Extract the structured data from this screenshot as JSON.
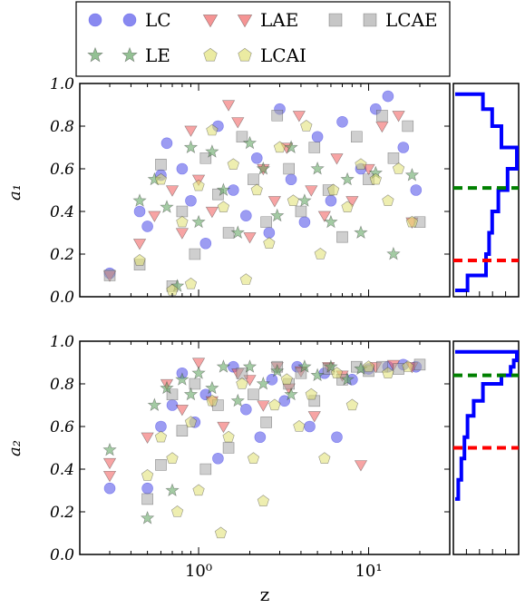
{
  "legend": {
    "entries": [
      {
        "label": "LC",
        "marker": "circle",
        "color": "#4a4ae8"
      },
      {
        "label": "LAE",
        "marker": "triangle-down",
        "color": "#f05a5a"
      },
      {
        "label": "LCAE",
        "marker": "square",
        "color": "#a8a8a8"
      },
      {
        "label": "LE",
        "marker": "star",
        "color": "#5aa05a"
      },
      {
        "label": "LCAI",
        "marker": "pentagon",
        "color": "#e0e070"
      }
    ]
  },
  "chart_data": [
    {
      "type": "scatter",
      "ylabel": "a₁",
      "xscale": "log",
      "xlim": [
        0.2,
        30
      ],
      "ylim": [
        0.0,
        1.0
      ],
      "yticks": [
        "0.0",
        "0.2",
        "0.4",
        "0.6",
        "0.8",
        "1.0"
      ],
      "series": [
        {
          "name": "LC",
          "color": "#4a4ae8",
          "points": [
            [
              0.3,
              0.11
            ],
            [
              0.45,
              0.4
            ],
            [
              0.5,
              0.33
            ],
            [
              0.6,
              0.57
            ],
            [
              0.65,
              0.72
            ],
            [
              0.8,
              0.6
            ],
            [
              0.9,
              0.45
            ],
            [
              1.1,
              0.25
            ],
            [
              1.3,
              0.8
            ],
            [
              1.6,
              0.5
            ],
            [
              1.9,
              0.38
            ],
            [
              2.2,
              0.65
            ],
            [
              2.6,
              0.3
            ],
            [
              3.0,
              0.88
            ],
            [
              3.5,
              0.55
            ],
            [
              4.2,
              0.35
            ],
            [
              5.0,
              0.75
            ],
            [
              6.0,
              0.45
            ],
            [
              7.0,
              0.82
            ],
            [
              9.0,
              0.6
            ],
            [
              11,
              0.88
            ],
            [
              13,
              0.94
            ],
            [
              16,
              0.7
            ],
            [
              19,
              0.5
            ]
          ]
        },
        {
          "name": "LAE",
          "color": "#f05a5a",
          "points": [
            [
              0.3,
              0.1
            ],
            [
              0.45,
              0.25
            ],
            [
              0.55,
              0.38
            ],
            [
              0.7,
              0.5
            ],
            [
              0.8,
              0.3
            ],
            [
              0.9,
              0.78
            ],
            [
              1.0,
              0.55
            ],
            [
              1.2,
              0.4
            ],
            [
              1.5,
              0.9
            ],
            [
              1.7,
              0.82
            ],
            [
              2.0,
              0.28
            ],
            [
              2.4,
              0.6
            ],
            [
              2.8,
              0.45
            ],
            [
              3.3,
              0.7
            ],
            [
              3.9,
              0.85
            ],
            [
              4.6,
              0.5
            ],
            [
              5.5,
              0.38
            ],
            [
              6.5,
              0.65
            ],
            [
              8.0,
              0.45
            ],
            [
              10,
              0.6
            ],
            [
              12,
              0.8
            ],
            [
              15,
              0.85
            ],
            [
              18,
              0.35
            ]
          ]
        },
        {
          "name": "LCAE",
          "color": "#a8a8a8",
          "points": [
            [
              0.3,
              0.1
            ],
            [
              0.45,
              0.15
            ],
            [
              0.6,
              0.62
            ],
            [
              0.7,
              0.05
            ],
            [
              0.8,
              0.4
            ],
            [
              0.95,
              0.2
            ],
            [
              1.1,
              0.65
            ],
            [
              1.3,
              0.48
            ],
            [
              1.5,
              0.3
            ],
            [
              1.8,
              0.75
            ],
            [
              2.1,
              0.55
            ],
            [
              2.5,
              0.35
            ],
            [
              2.9,
              0.85
            ],
            [
              3.4,
              0.6
            ],
            [
              4.0,
              0.4
            ],
            [
              4.8,
              0.7
            ],
            [
              5.8,
              0.5
            ],
            [
              7.0,
              0.28
            ],
            [
              8.5,
              0.75
            ],
            [
              10,
              0.55
            ],
            [
              12,
              0.85
            ],
            [
              14,
              0.65
            ],
            [
              17,
              0.8
            ],
            [
              20,
              0.35
            ]
          ]
        },
        {
          "name": "LE",
          "color": "#5aa05a",
          "points": [
            [
              0.45,
              0.45
            ],
            [
              0.55,
              0.55
            ],
            [
              0.65,
              0.42
            ],
            [
              0.75,
              0.05
            ],
            [
              0.9,
              0.7
            ],
            [
              1.0,
              0.35
            ],
            [
              1.2,
              0.68
            ],
            [
              1.4,
              0.5
            ],
            [
              1.7,
              0.3
            ],
            [
              2.0,
              0.72
            ],
            [
              2.4,
              0.6
            ],
            [
              2.9,
              0.38
            ],
            [
              3.5,
              0.7
            ],
            [
              4.2,
              0.45
            ],
            [
              5.0,
              0.6
            ],
            [
              6.0,
              0.35
            ],
            [
              7.5,
              0.55
            ],
            [
              9.0,
              0.3
            ],
            [
              11,
              0.58
            ],
            [
              14,
              0.2
            ],
            [
              18,
              0.57
            ]
          ]
        },
        {
          "name": "LCAI",
          "color": "#e0e070",
          "points": [
            [
              0.45,
              0.17
            ],
            [
              0.6,
              0.55
            ],
            [
              0.7,
              0.03
            ],
            [
              0.8,
              0.35
            ],
            [
              0.9,
              0.06
            ],
            [
              1.0,
              0.52
            ],
            [
              1.2,
              0.78
            ],
            [
              1.4,
              0.42
            ],
            [
              1.6,
              0.62
            ],
            [
              1.9,
              0.08
            ],
            [
              2.2,
              0.5
            ],
            [
              2.6,
              0.25
            ],
            [
              3.0,
              0.7
            ],
            [
              3.6,
              0.45
            ],
            [
              4.3,
              0.8
            ],
            [
              5.2,
              0.2
            ],
            [
              6.2,
              0.5
            ],
            [
              7.5,
              0.42
            ],
            [
              9.0,
              0.62
            ],
            [
              11,
              0.55
            ],
            [
              13,
              0.45
            ],
            [
              15,
              0.6
            ],
            [
              18,
              0.35
            ]
          ]
        }
      ]
    },
    {
      "type": "scatter",
      "ylabel": "a₂",
      "xlabel": "z",
      "xscale": "log",
      "xlim": [
        0.2,
        30
      ],
      "ylim": [
        0.0,
        1.0
      ],
      "xticks": [
        "10⁰",
        "10¹"
      ],
      "yticks": [
        "0.0",
        "0.2",
        "0.4",
        "0.6",
        "0.8",
        "1.0"
      ],
      "series": [
        {
          "name": "LC",
          "color": "#4a4ae8",
          "points": [
            [
              0.3,
              0.31
            ],
            [
              0.5,
              0.31
            ],
            [
              0.6,
              0.6
            ],
            [
              0.7,
              0.7
            ],
            [
              0.8,
              0.85
            ],
            [
              0.95,
              0.62
            ],
            [
              1.1,
              0.75
            ],
            [
              1.3,
              0.45
            ],
            [
              1.6,
              0.88
            ],
            [
              1.9,
              0.68
            ],
            [
              2.3,
              0.55
            ],
            [
              2.7,
              0.82
            ],
            [
              3.2,
              0.72
            ],
            [
              3.8,
              0.88
            ],
            [
              4.5,
              0.6
            ],
            [
              5.5,
              0.85
            ],
            [
              6.5,
              0.55
            ],
            [
              8.0,
              0.82
            ],
            [
              10,
              0.87
            ],
            [
              13,
              0.88
            ],
            [
              16,
              0.89
            ],
            [
              19,
              0.88
            ]
          ]
        },
        {
          "name": "LAE",
          "color": "#f05a5a",
          "points": [
            [
              0.3,
              0.43
            ],
            [
              0.3,
              0.37
            ],
            [
              0.5,
              0.55
            ],
            [
              0.65,
              0.8
            ],
            [
              0.8,
              0.68
            ],
            [
              1.0,
              0.9
            ],
            [
              1.2,
              0.72
            ],
            [
              1.4,
              0.6
            ],
            [
              1.7,
              0.85
            ],
            [
              2.0,
              0.82
            ],
            [
              2.4,
              0.7
            ],
            [
              2.9,
              0.88
            ],
            [
              3.4,
              0.78
            ],
            [
              4.0,
              0.86
            ],
            [
              4.8,
              0.65
            ],
            [
              5.8,
              0.88
            ],
            [
              7.0,
              0.84
            ],
            [
              9.0,
              0.42
            ],
            [
              11,
              0.88
            ],
            [
              14,
              0.89
            ],
            [
              18,
              0.88
            ]
          ]
        },
        {
          "name": "LCAE",
          "color": "#a8a8a8",
          "points": [
            [
              0.5,
              0.26
            ],
            [
              0.6,
              0.42
            ],
            [
              0.7,
              0.75
            ],
            [
              0.8,
              0.58
            ],
            [
              0.95,
              0.8
            ],
            [
              1.1,
              0.4
            ],
            [
              1.3,
              0.7
            ],
            [
              1.5,
              0.5
            ],
            [
              1.8,
              0.85
            ],
            [
              2.1,
              0.75
            ],
            [
              2.5,
              0.62
            ],
            [
              2.9,
              0.88
            ],
            [
              3.4,
              0.8
            ],
            [
              4.0,
              0.85
            ],
            [
              4.8,
              0.72
            ],
            [
              5.8,
              0.87
            ],
            [
              7.0,
              0.82
            ],
            [
              8.5,
              0.88
            ],
            [
              10,
              0.86
            ],
            [
              12,
              0.88
            ],
            [
              15,
              0.87
            ],
            [
              20,
              0.89
            ]
          ]
        },
        {
          "name": "LE",
          "color": "#5aa05a",
          "points": [
            [
              0.3,
              0.49
            ],
            [
              0.5,
              0.17
            ],
            [
              0.55,
              0.7
            ],
            [
              0.65,
              0.78
            ],
            [
              0.7,
              0.3
            ],
            [
              0.8,
              0.82
            ],
            [
              0.9,
              0.75
            ],
            [
              1.0,
              0.85
            ],
            [
              1.2,
              0.78
            ],
            [
              1.4,
              0.88
            ],
            [
              1.7,
              0.72
            ],
            [
              2.0,
              0.88
            ],
            [
              2.4,
              0.8
            ],
            [
              2.9,
              0.86
            ],
            [
              3.5,
              0.75
            ],
            [
              4.2,
              0.88
            ],
            [
              5.0,
              0.84
            ],
            [
              6.0,
              0.88
            ],
            [
              7.5,
              0.82
            ],
            [
              9.0,
              0.87
            ]
          ]
        },
        {
          "name": "LCAI",
          "color": "#e0e070",
          "points": [
            [
              0.5,
              0.37
            ],
            [
              0.6,
              0.55
            ],
            [
              0.7,
              0.45
            ],
            [
              0.75,
              0.2
            ],
            [
              0.9,
              0.62
            ],
            [
              1.0,
              0.3
            ],
            [
              1.2,
              0.72
            ],
            [
              1.35,
              0.1
            ],
            [
              1.5,
              0.55
            ],
            [
              1.8,
              0.8
            ],
            [
              2.1,
              0.45
            ],
            [
              2.4,
              0.25
            ],
            [
              2.8,
              0.7
            ],
            [
              3.3,
              0.82
            ],
            [
              3.9,
              0.6
            ],
            [
              4.6,
              0.75
            ],
            [
              5.5,
              0.45
            ],
            [
              6.5,
              0.85
            ],
            [
              8.0,
              0.7
            ],
            [
              10,
              0.88
            ],
            [
              13,
              0.85
            ],
            [
              17,
              0.88
            ]
          ]
        }
      ]
    },
    {
      "type": "line",
      "orientation": "horizontal-histogram",
      "ylim": [
        0.0,
        1.0
      ],
      "series": [
        {
          "name": "",
          "color": "#0000ff",
          "steps": [
            [
              0.03,
              0.2
            ],
            [
              0.1,
              0.5
            ],
            [
              0.2,
              0.55
            ],
            [
              0.3,
              0.6
            ],
            [
              0.4,
              0.7
            ],
            [
              0.5,
              0.85
            ],
            [
              0.6,
              1.0
            ],
            [
              0.7,
              0.75
            ],
            [
              0.8,
              0.6
            ],
            [
              0.88,
              0.45
            ],
            [
              0.95,
              0.0
            ]
          ]
        }
      ],
      "reference_lines": [
        {
          "value": 0.51,
          "color": "#008000"
        },
        {
          "value": 0.17,
          "color": "#ff0000"
        }
      ]
    },
    {
      "type": "line",
      "orientation": "horizontal-histogram",
      "ylim": [
        0.0,
        1.0
      ],
      "series": [
        {
          "name": "",
          "color": "#0000ff",
          "steps": [
            [
              0.26,
              0.05
            ],
            [
              0.35,
              0.1
            ],
            [
              0.45,
              0.15
            ],
            [
              0.55,
              0.2
            ],
            [
              0.65,
              0.3
            ],
            [
              0.72,
              0.45
            ],
            [
              0.8,
              0.75
            ],
            [
              0.84,
              0.9
            ],
            [
              0.88,
              0.95
            ],
            [
              0.91,
              1.0
            ],
            [
              0.95,
              0.0
            ]
          ]
        }
      ],
      "reference_lines": [
        {
          "value": 0.84,
          "color": "#008000"
        },
        {
          "value": 0.5,
          "color": "#ff0000"
        }
      ]
    }
  ]
}
